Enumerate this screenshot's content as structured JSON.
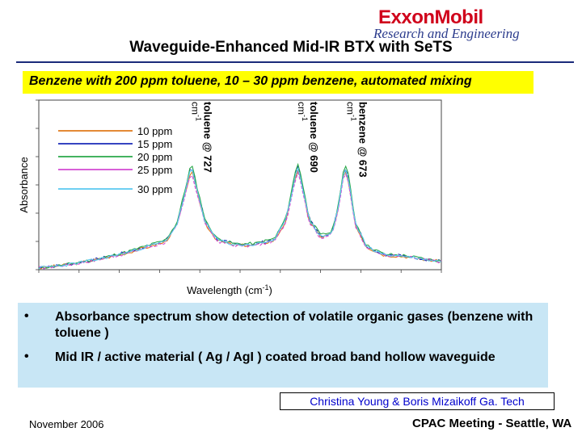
{
  "header": {
    "logo_main": "ExxonMobil",
    "logo_sub": "Research and Engineering",
    "title": "Waveguide-Enhanced Mid-IR BTX with SeTS",
    "subtitle": "Benzene with 200 ppm toluene, 10 – 30 ppm benzene, automated mixing"
  },
  "colors": {
    "subtitle_band": "#ffff00",
    "bullet_box": "#c8e6f5",
    "credit_text": "#0000cc",
    "title_rule": "#1a2a7a"
  },
  "chart_data": {
    "type": "line",
    "xlabel": "Wavelength (cm",
    "xlabel_sup": "-1",
    "xlabel_close": ")",
    "ylabel": "Absorbance",
    "x_direction": "wavenumber decreasing left to right",
    "xlim": [
      780,
      640
    ],
    "ylim": [
      0,
      1
    ],
    "grid": false,
    "legend_position": "upper-left",
    "series": [
      {
        "name": "10 ppm",
        "color": "#e07a1a",
        "scale": 0.96,
        "noise_seed": 3
      },
      {
        "name": "15 ppm",
        "color": "#1a2ab8",
        "scale": 1.0,
        "noise_seed": 7
      },
      {
        "name": "20 ppm",
        "color": "#2aa84a",
        "scale": 1.02,
        "noise_seed": 11
      },
      {
        "name": "25 ppm",
        "color": "#d24ad2",
        "scale": 0.94,
        "noise_seed": 17
      },
      {
        "name": "30 ppm",
        "color": "#5ac8f0",
        "scale": 0.98,
        "noise_seed": 23
      }
    ],
    "base_profile": {
      "x": [
        780,
        770,
        760,
        750,
        742,
        736,
        732,
        729,
        727,
        725,
        722,
        718,
        712,
        705,
        698,
        694,
        691,
        690,
        689,
        686,
        682,
        678,
        676,
        674,
        673,
        672,
        670,
        666,
        660,
        652,
        645,
        640
      ],
      "y": [
        0.01,
        0.03,
        0.06,
        0.1,
        0.14,
        0.17,
        0.27,
        0.47,
        0.62,
        0.48,
        0.28,
        0.18,
        0.15,
        0.15,
        0.18,
        0.3,
        0.55,
        0.62,
        0.56,
        0.3,
        0.2,
        0.22,
        0.36,
        0.58,
        0.6,
        0.52,
        0.28,
        0.14,
        0.09,
        0.08,
        0.06,
        0.05
      ]
    },
    "annotations": [
      {
        "line1": "toluene @ 727",
        "line2": "cm",
        "sup": "-1",
        "x": 727
      },
      {
        "line1": "toluene @ 690",
        "line2": "cm",
        "sup": "-1",
        "x": 690
      },
      {
        "line1": "benzene @ 673",
        "line2": "cm",
        "sup": "-1",
        "x": 673
      }
    ]
  },
  "bullets": [
    {
      "marker": "•",
      "text": "Absorbance spectrum show detection of volatile organic gases (benzene with toluene )"
    },
    {
      "marker": "•",
      "text": "Mid IR / active material ( Ag / AgI ) coated broad band hollow waveguide"
    }
  ],
  "credit": "Christina Young & Boris Mizaikoff  Ga. Tech",
  "footer": {
    "date": "November 2006",
    "meeting": "CPAC Meeting - Seattle, WA"
  }
}
